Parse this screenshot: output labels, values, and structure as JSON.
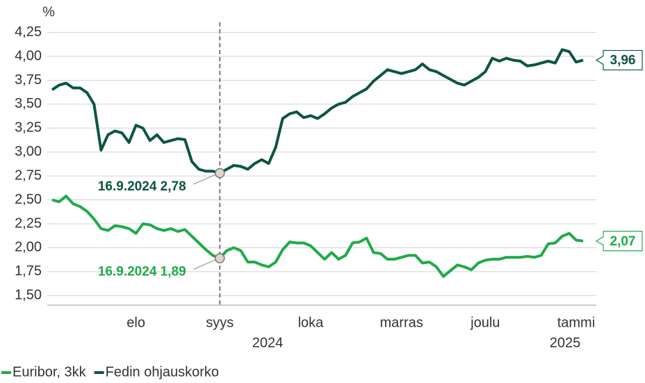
{
  "chart_data": {
    "type": "line",
    "y_label": "%",
    "categories": [
      null,
      null,
      null,
      null,
      null,
      null,
      null,
      null,
      null,
      null,
      null,
      null,
      "elo",
      null,
      null,
      null,
      null,
      null,
      null,
      null,
      null,
      null,
      null,
      null,
      "syys",
      null,
      null,
      null,
      null,
      null,
      null,
      null,
      null,
      null,
      null,
      null,
      null,
      "loka",
      null,
      null,
      null,
      null,
      null,
      null,
      null,
      null,
      null,
      null,
      null,
      null,
      "marras",
      null,
      null,
      null,
      null,
      null,
      null,
      null,
      null,
      null,
      null,
      null,
      "joulu",
      null,
      null,
      null,
      null,
      null,
      null,
      null,
      null,
      null,
      null,
      null,
      null,
      "tammi",
      null
    ],
    "years": [
      "2024",
      "2025"
    ],
    "series": [
      {
        "name": "Euribor, 3kk",
        "color": "#1faa4a",
        "values": [
          2.5,
          2.48,
          2.54,
          2.46,
          2.43,
          2.38,
          2.3,
          2.2,
          2.18,
          2.23,
          2.22,
          2.2,
          2.15,
          2.25,
          2.24,
          2.2,
          2.18,
          2.2,
          2.17,
          2.19,
          2.12,
          2.05,
          1.98,
          1.92,
          1.89,
          1.97,
          2.0,
          1.97,
          1.85,
          1.85,
          1.82,
          1.8,
          1.85,
          1.98,
          2.06,
          2.05,
          2.05,
          2.02,
          1.95,
          1.88,
          1.95,
          1.88,
          1.92,
          2.05,
          2.06,
          2.1,
          1.95,
          1.94,
          1.88,
          1.88,
          1.9,
          1.92,
          1.92,
          1.84,
          1.85,
          1.8,
          1.7,
          1.76,
          1.82,
          1.8,
          1.77,
          1.84,
          1.87,
          1.88,
          1.88,
          1.9,
          1.9,
          1.9,
          1.91,
          1.9,
          1.92,
          2.04,
          2.05,
          2.12,
          2.15,
          2.08,
          2.07
        ],
        "value_labels": [
          null,
          null,
          null,
          null,
          null,
          null,
          null,
          null,
          null,
          null,
          null,
          null,
          null,
          null,
          null,
          null,
          null,
          null,
          null,
          null,
          null,
          null,
          null,
          null,
          "16.9.2024 1,89",
          null,
          null,
          null,
          null,
          null,
          null,
          null,
          null,
          null,
          null,
          null,
          null,
          null,
          null,
          null,
          null,
          null,
          null,
          null,
          null,
          null,
          null,
          null,
          null,
          null,
          null,
          null,
          null,
          null,
          null,
          null,
          null,
          null,
          null,
          null,
          null,
          null,
          null,
          null,
          null,
          null,
          null,
          null,
          null,
          null,
          null,
          null,
          null,
          null,
          null,
          null,
          "2,07"
        ]
      },
      {
        "name": "Fedin ohjauskorko",
        "color": "#0d5443",
        "values": [
          3.65,
          3.7,
          3.72,
          3.67,
          3.67,
          3.62,
          3.5,
          3.02,
          3.18,
          3.22,
          3.2,
          3.1,
          3.28,
          3.25,
          3.12,
          3.18,
          3.1,
          3.12,
          3.14,
          3.13,
          2.9,
          2.82,
          2.8,
          2.8,
          2.78,
          2.82,
          2.86,
          2.85,
          2.82,
          2.88,
          2.92,
          2.88,
          3.05,
          3.35,
          3.4,
          3.42,
          3.36,
          3.38,
          3.35,
          3.4,
          3.46,
          3.5,
          3.52,
          3.58,
          3.62,
          3.66,
          3.74,
          3.8,
          3.86,
          3.84,
          3.82,
          3.84,
          3.86,
          3.92,
          3.86,
          3.84,
          3.8,
          3.76,
          3.72,
          3.7,
          3.74,
          3.78,
          3.84,
          3.98,
          3.95,
          3.98,
          3.96,
          3.95,
          3.9,
          3.91,
          3.93,
          3.95,
          3.93,
          4.07,
          4.05,
          3.94,
          3.96
        ],
        "value_labels": [
          null,
          null,
          null,
          null,
          null,
          null,
          null,
          null,
          null,
          null,
          null,
          null,
          null,
          null,
          null,
          null,
          null,
          null,
          null,
          null,
          null,
          null,
          null,
          null,
          "16.9.2024 2,78",
          null,
          null,
          null,
          null,
          null,
          null,
          null,
          null,
          null,
          null,
          null,
          null,
          null,
          null,
          null,
          null,
          null,
          null,
          null,
          null,
          null,
          null,
          null,
          null,
          null,
          null,
          null,
          null,
          null,
          null,
          null,
          null,
          null,
          null,
          null,
          null,
          null,
          null,
          null,
          null,
          null,
          null,
          null,
          null,
          null,
          null,
          null,
          null,
          null,
          null,
          null,
          "3,96"
        ]
      }
    ],
    "ylim": [
      1.4,
      4.32
    ],
    "yticks": [
      {
        "value": 1.5,
        "label": "1,50"
      },
      {
        "value": 1.75,
        "label": "1,75"
      },
      {
        "value": 2.0,
        "label": "2,00"
      },
      {
        "value": 2.25,
        "label": "2,25"
      },
      {
        "value": 2.5,
        "label": "2,50"
      },
      {
        "value": 2.75,
        "label": "2,75"
      },
      {
        "value": 3.0,
        "label": "3,00"
      },
      {
        "value": 3.25,
        "label": "3,25"
      },
      {
        "value": 3.5,
        "label": "3,50"
      },
      {
        "value": 3.75,
        "label": "3,75"
      },
      {
        "value": 4.0,
        "label": "4,00"
      },
      {
        "value": 4.25,
        "label": "4,25"
      }
    ],
    "grid": true
  }
}
